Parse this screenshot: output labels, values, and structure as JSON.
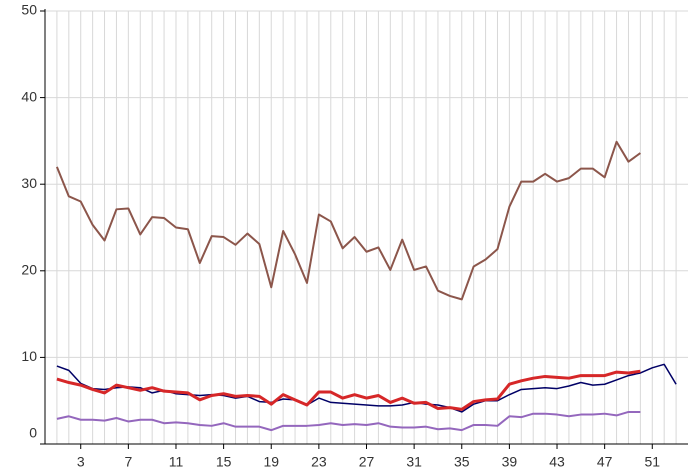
{
  "chart_data": {
    "type": "line",
    "x": [
      1,
      2,
      3,
      4,
      5,
      6,
      7,
      8,
      9,
      10,
      11,
      12,
      13,
      14,
      15,
      16,
      17,
      18,
      19,
      20,
      21,
      22,
      23,
      24,
      25,
      26,
      27,
      28,
      29,
      30,
      31,
      32,
      33,
      34,
      35,
      36,
      37,
      38,
      39,
      40,
      41,
      42,
      43,
      44,
      45,
      46,
      47,
      48,
      49,
      50,
      51,
      52,
      53
    ],
    "series": [
      {
        "color": "#8c564b",
        "width": 2,
        "values": [
          32,
          28.6,
          28,
          25.3,
          23.5,
          27.1,
          27.2,
          24.2,
          26.2,
          26.1,
          25,
          24.8,
          20.9,
          24,
          23.9,
          23,
          24.3,
          23.1,
          18.1,
          24.6,
          21.9,
          18.6,
          26.5,
          25.7,
          22.6,
          23.9,
          22.2,
          22.7,
          20.1,
          23.6,
          20.1,
          20.5,
          17.7,
          17.1,
          16.7,
          20.5,
          21.3,
          22.5,
          27.4,
          30.3,
          30.3,
          31.2,
          30.3,
          30.7,
          31.8,
          31.8,
          30.8,
          34.9,
          32.6,
          33.6,
          null,
          null,
          null
        ]
      },
      {
        "color": "#000066",
        "width": 1.5,
        "values": [
          9,
          8.5,
          7,
          6.4,
          6.3,
          6.5,
          6.6,
          6.5,
          5.9,
          6.2,
          5.8,
          5.7,
          5.6,
          5.7,
          5.6,
          5.3,
          5.5,
          4.9,
          4.8,
          5.2,
          5.1,
          4.5,
          5.3,
          4.8,
          4.7,
          4.6,
          4.5,
          4.4,
          4.4,
          4.5,
          4.8,
          4.6,
          4.5,
          4.2,
          3.7,
          4.6,
          5,
          5,
          5.7,
          6.3,
          6.4,
          6.5,
          6.4,
          6.7,
          7.1,
          6.8,
          6.9,
          7.4,
          7.9,
          8.2,
          8.8,
          9.2,
          6.9
        ]
      },
      {
        "color": "#d62728",
        "width": 3,
        "values": [
          7.5,
          7.1,
          6.8,
          6.3,
          5.9,
          6.8,
          6.5,
          6.2,
          6.5,
          6.1,
          6.0,
          5.9,
          5.1,
          5.6,
          5.8,
          5.5,
          5.6,
          5.5,
          4.6,
          5.7,
          5.1,
          4.5,
          6.0,
          6.0,
          5.3,
          5.7,
          5.3,
          5.6,
          4.8,
          5.3,
          4.7,
          4.8,
          4.1,
          4.2,
          4.0,
          4.9,
          5.1,
          5.2,
          6.9,
          7.3,
          7.6,
          7.8,
          7.7,
          7.6,
          7.9,
          7.9,
          7.9,
          8.3,
          8.2,
          8.4,
          null,
          null,
          null
        ]
      },
      {
        "color": "#9467bd",
        "width": 2,
        "values": [
          2.9,
          3.2,
          2.8,
          2.8,
          2.7,
          3.0,
          2.6,
          2.8,
          2.8,
          2.4,
          2.5,
          2.4,
          2.2,
          2.1,
          2.4,
          2.0,
          2.0,
          2.0,
          1.6,
          2.1,
          2.1,
          2.1,
          2.2,
          2.4,
          2.2,
          2.3,
          2.2,
          2.4,
          2.0,
          1.9,
          1.9,
          2.0,
          1.7,
          1.8,
          1.6,
          2.2,
          2.2,
          2.1,
          3.2,
          3.1,
          3.5,
          3.5,
          3.4,
          3.2,
          3.4,
          3.4,
          3.5,
          3.3,
          3.7,
          3.7,
          null,
          null,
          null
        ]
      }
    ],
    "xlim": [
      0,
      54
    ],
    "xticks": [
      3,
      7,
      11,
      15,
      19,
      23,
      27,
      31,
      35,
      39,
      43,
      47,
      51
    ],
    "ylim": [
      0,
      50
    ],
    "yticks": [
      0,
      10,
      20,
      30,
      40,
      50
    ],
    "grid": true
  }
}
